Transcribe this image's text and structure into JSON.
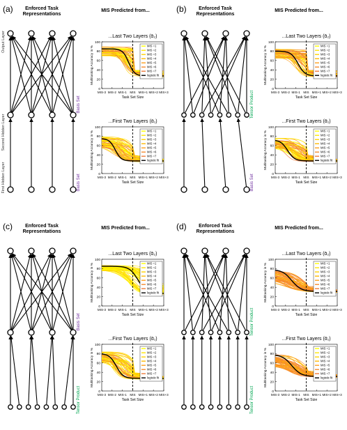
{
  "panels": [
    {
      "letter": "(a)",
      "enforced_title": [
        "Enforced Task",
        "Representations"
      ],
      "mis_title": "MIS Predicted from...",
      "network": {
        "layers": [
          4,
          4,
          4
        ],
        "edges": [
          [
            0,
            1,
            "full"
          ],
          [
            1,
            2,
            "parallel"
          ]
        ],
        "layer_labels": [
          "Output Layer",
          "Second Hidden Layer",
          "First Hidden Layer"
        ],
        "side_labels": [
          {
            "text": "Basis Set",
            "color": "#7030a0"
          },
          {
            "text": "Basis Set",
            "color": "#7030a0"
          }
        ]
      },
      "charts": [
        {
          "title": "...Last Two Layers (ᾱ₂)",
          "mis_index": 3,
          "style": "wide",
          "plateau_high": 85,
          "plateau_low": 27,
          "midpoint": 2.6,
          "steepness": 3.5,
          "xlabel": "Task Set Size",
          "ylabel": "Multitasking Accuracy in %",
          "xticks": [
            "MIS-3",
            "MIS-2",
            "MIS-1",
            "MIS",
            "MIS+1",
            "MIS+2",
            "MIS+3"
          ],
          "yticks": [
            "0",
            "20",
            "40",
            "60",
            "80",
            "100"
          ],
          "ylim": [
            0,
            100
          ],
          "legend": [
            "MIS =1",
            "MIS =2",
            "MIS =3",
            "MIS =4",
            "MIS =5",
            "MIS =6",
            "MIS =7",
            "logistic fit"
          ]
        },
        {
          "title": "...First Two Layers (ᾱ₁)",
          "mis_index": 3,
          "style": "narrow",
          "plateau_high": 75,
          "plateau_low": 27,
          "midpoint": 1.3,
          "steepness": 3.5,
          "xlabel": "Task Set Size",
          "ylabel": "Multitasking Accuracy in %",
          "xticks": [
            "MIS-3",
            "MIS-2",
            "MIS-1",
            "MIS",
            "MIS+1",
            "MIS+2",
            "MIS+3"
          ],
          "yticks": [
            "0",
            "20",
            "40",
            "60",
            "80",
            "100"
          ],
          "ylim": [
            0,
            100
          ],
          "legend": [
            "MIS =1",
            "MIS =2",
            "MIS =3",
            "MIS =4",
            "MIS =5",
            "MIS =6",
            "MIS =7",
            "logistic fit"
          ]
        }
      ]
    },
    {
      "letter": "(b)",
      "enforced_title": [
        "Enforced Task",
        "Representations"
      ],
      "mis_title": "MIS Predicted from...",
      "network": {
        "layers": [
          4,
          8,
          4
        ],
        "edges": [
          [
            0,
            1,
            "tensor"
          ],
          [
            1,
            2,
            "pairs"
          ]
        ],
        "layer_labels": [],
        "side_labels": [
          {
            "text": "Tensor Product",
            "color": "#00a651"
          },
          {
            "text": "Basis Set",
            "color": "#7030a0"
          }
        ]
      },
      "charts": [
        {
          "title": "...Last Two Layers (ᾱ₂)",
          "mis_index": 3,
          "style": "wide",
          "plateau_high": 80,
          "plateau_low": 27,
          "midpoint": 2.2,
          "steepness": 3.0,
          "xlabel": "Task Set Size",
          "ylabel": "Multitasking Accuracy in %",
          "xticks": [
            "MIS-3",
            "MIS-2",
            "MIS-1",
            "MIS",
            "MIS+1",
            "MIS+2",
            "MIS+3"
          ],
          "yticks": [
            "0",
            "20",
            "40",
            "60",
            "80",
            "100"
          ],
          "ylim": [
            0,
            100
          ],
          "legend": [
            "MIS =1",
            "MIS =2",
            "MIS =3",
            "MIS =4",
            "MIS =5",
            "MIS =6",
            "MIS =7",
            "logistic fit"
          ]
        },
        {
          "title": "...First Two Layers (ᾱ₁)",
          "mis_index": 3,
          "style": "narrow",
          "plateau_high": 72,
          "plateau_low": 27,
          "midpoint": 1.2,
          "steepness": 3.0,
          "xlabel": "Task Set Size",
          "ylabel": "Multitasking Accuracy in %",
          "xticks": [
            "MIS-3",
            "MIS-2",
            "MIS-1",
            "MIS",
            "MIS+1",
            "MIS+2",
            "MIS+3"
          ],
          "yticks": [
            "0",
            "20",
            "40",
            "60",
            "80",
            "100"
          ],
          "ylim": [
            0,
            100
          ],
          "legend": [
            "MIS =1",
            "MIS =2",
            "MIS =3",
            "MIS =4",
            "MIS =5",
            "MIS =6",
            "MIS =7",
            "logistic fit"
          ]
        }
      ]
    },
    {
      "letter": "(c)",
      "enforced_title": [
        "Enforced Task",
        "Representations"
      ],
      "mis_title": "MIS Predicted from...",
      "network": {
        "layers": [
          4,
          4,
          8
        ],
        "edges": [
          [
            0,
            1,
            "full"
          ],
          [
            1,
            2,
            "pairs"
          ]
        ],
        "layer_labels": [],
        "side_labels": [
          {
            "text": "Basis Set",
            "color": "#7030a0"
          },
          {
            "text": "Tensor Product",
            "color": "#00a651"
          }
        ]
      },
      "charts": [
        {
          "title": "...Last Two Layers (ᾱ₂)",
          "mis_index": 3,
          "style": "yellow",
          "plateau_high": 85,
          "plateau_low": 27,
          "midpoint": 3.5,
          "steepness": 2.5,
          "xlabel": "Task Set Size",
          "ylabel": "Multitasking Accuracy in %",
          "xticks": [
            "MIS-3",
            "MIS-2",
            "MIS-1",
            "MIS",
            "MIS+1",
            "MIS+2",
            "MIS+3"
          ],
          "yticks": [
            "0",
            "20",
            "40",
            "60",
            "80",
            "100"
          ],
          "ylim": [
            0,
            100
          ],
          "legend": [
            "MIS =1",
            "MIS =2",
            "MIS =3",
            "MIS =4",
            "MIS =5",
            "MIS =6",
            "MIS =7",
            "logistic fit"
          ]
        },
        {
          "title": "...First Two Layers (ᾱ₁)",
          "mis_index": 3,
          "style": "narrow",
          "plateau_high": 80,
          "plateau_low": 27,
          "midpoint": 1.4,
          "steepness": 3.0,
          "xlabel": "Task Set Size",
          "ylabel": "Multitasking Accuracy in %",
          "xticks": [
            "MIS-3",
            "MIS-2",
            "MIS-1",
            "MIS",
            "MIS+1",
            "MIS+2",
            "MIS+3"
          ],
          "yticks": [
            "0",
            "20",
            "40",
            "60",
            "80",
            "100"
          ],
          "ylim": [
            0,
            100
          ],
          "legend": [
            "MIS =1",
            "MIS =2",
            "MIS =3",
            "MIS =4",
            "MIS =5",
            "MIS =6",
            "MIS =7",
            "logistic fit"
          ]
        }
      ]
    },
    {
      "letter": "(d)",
      "enforced_title": [
        "Enforced Task",
        "Representations"
      ],
      "mis_title": "MIS Predicted from...",
      "network": {
        "layers": [
          4,
          8,
          8
        ],
        "edges": [
          [
            0,
            1,
            "tensor"
          ],
          [
            1,
            2,
            "parallel"
          ]
        ],
        "layer_labels": [],
        "side_labels": [
          {
            "text": "Tensor Product",
            "color": "#00a651"
          },
          {
            "text": "Tensor Product",
            "color": "#00a651"
          }
        ]
      },
      "charts": [
        {
          "title": "...Last Two Layers (ᾱ₂)",
          "mis_index": 3,
          "style": "orange",
          "plateau_high": 78,
          "plateau_low": 31,
          "midpoint": 1.6,
          "steepness": 2.2,
          "xlabel": "Task Set Size",
          "ylabel": "Multitasking Accuracy in %",
          "xticks": [
            "MIS-3",
            "MIS-2",
            "MIS-1",
            "MIS",
            "MIS+1",
            "MIS+2",
            "MIS+3"
          ],
          "yticks": [
            "0",
            "20",
            "40",
            "60",
            "80",
            "100"
          ],
          "ylim": [
            0,
            100
          ],
          "legend": [
            "MIS =1",
            "MIS =2",
            "MIS =3",
            "MIS =4",
            "MIS =5",
            "MIS =6",
            "MIS =7",
            "logistic fit"
          ]
        },
        {
          "title": "...First Two Layers (ᾱ₁)",
          "mis_index": 3,
          "style": "orange",
          "plateau_high": 78,
          "plateau_low": 31,
          "midpoint": 1.6,
          "steepness": 2.2,
          "xlabel": "Task Set Size",
          "ylabel": "Multitasking Accuracy in %",
          "xticks": [
            "MIS-3",
            "MIS-2",
            "MIS-1",
            "MIS",
            "MIS+1",
            "MIS+2",
            "MIS+3"
          ],
          "yticks": [
            "0",
            "20",
            "40",
            "60",
            "80",
            "100"
          ],
          "ylim": [
            0,
            100
          ],
          "legend": [
            "MIS =1",
            "MIS =2",
            "MIS =3",
            "MIS =4",
            "MIS =5",
            "MIS =6",
            "MIS =7",
            "logistic fit"
          ]
        }
      ]
    }
  ],
  "colors": {
    "series": [
      "#ffff00",
      "#ffe600",
      "#ffd200",
      "#ffb800",
      "#ff9e1a",
      "#f58a2e",
      "#ee7a3a"
    ],
    "fit": "#000000",
    "node_stroke": "#000000"
  }
}
